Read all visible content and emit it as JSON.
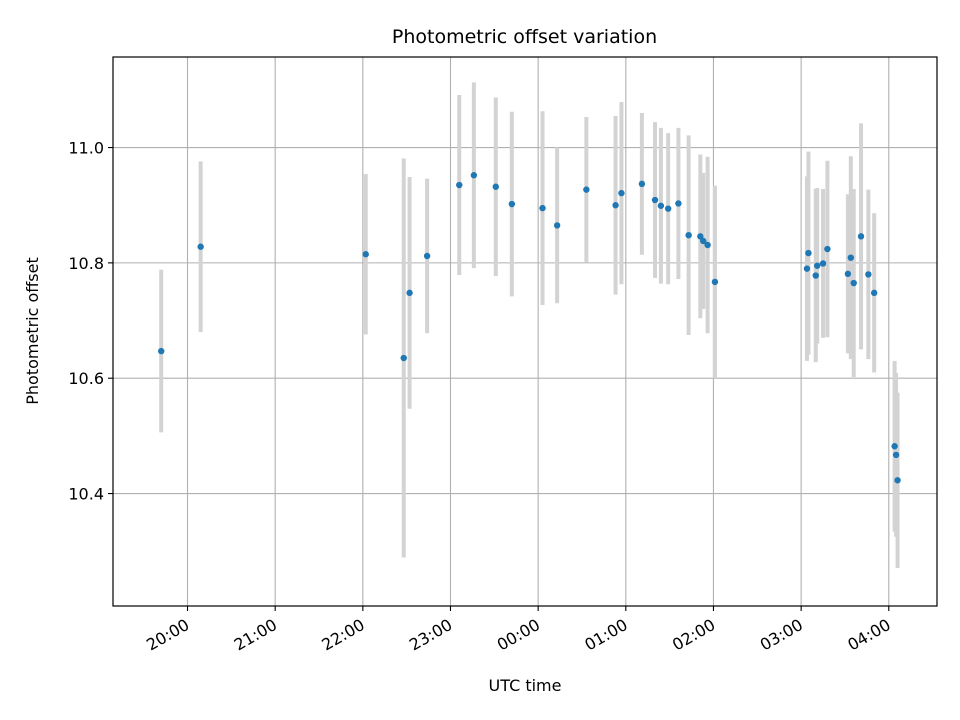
{
  "chart_data": {
    "type": "scatter",
    "title": "Photometric offset variation",
    "xlabel": "UTC time",
    "ylabel": "Photometric offset",
    "x_ticks": [
      "20:00",
      "21:00",
      "22:00",
      "23:00",
      "00:00",
      "01:00",
      "02:00",
      "03:00",
      "04:00"
    ],
    "y_ticks": [
      "10.4",
      "10.6",
      "10.8",
      "11.0"
    ],
    "xlim": [
      "19:09",
      "04:33"
    ],
    "ylim": [
      10.205,
      11.157
    ],
    "grid": true,
    "series": [
      {
        "marker_color": "#1f77b4",
        "error_color": "#d3d3d3",
        "points": [
          {
            "x": "19:42",
            "y": 10.647,
            "err": 0.141
          },
          {
            "x": "20:09",
            "y": 10.828,
            "err": 0.148
          },
          {
            "x": "22:02",
            "y": 10.815,
            "err": 0.139
          },
          {
            "x": "22:28",
            "y": 10.635,
            "err": 0.346
          },
          {
            "x": "22:32",
            "y": 10.748,
            "err": 0.201
          },
          {
            "x": "22:44",
            "y": 10.812,
            "err": 0.134
          },
          {
            "x": "23:06",
            "y": 10.935,
            "err": 0.156
          },
          {
            "x": "23:16",
            "y": 10.952,
            "err": 0.161
          },
          {
            "x": "23:31",
            "y": 10.932,
            "err": 0.155
          },
          {
            "x": "23:42",
            "y": 10.902,
            "err": 0.16
          },
          {
            "x": "00:03",
            "y": 10.895,
            "err": 0.168
          },
          {
            "x": "00:13",
            "y": 10.865,
            "err": 0.135
          },
          {
            "x": "00:33",
            "y": 10.927,
            "err": 0.126
          },
          {
            "x": "00:53",
            "y": 10.9,
            "err": 0.155
          },
          {
            "x": "00:57",
            "y": 10.921,
            "err": 0.158
          },
          {
            "x": "01:11",
            "y": 10.937,
            "err": 0.123
          },
          {
            "x": "01:20",
            "y": 10.909,
            "err": 0.135
          },
          {
            "x": "01:24",
            "y": 10.899,
            "err": 0.135
          },
          {
            "x": "01:29",
            "y": 10.894,
            "err": 0.131
          },
          {
            "x": "01:36",
            "y": 10.903,
            "err": 0.131
          },
          {
            "x": "01:43",
            "y": 10.848,
            "err": 0.173
          },
          {
            "x": "01:51",
            "y": 10.846,
            "err": 0.142
          },
          {
            "x": "01:53",
            "y": 10.838,
            "err": 0.118
          },
          {
            "x": "01:56",
            "y": 10.831,
            "err": 0.153
          },
          {
            "x": "02:01",
            "y": 10.767,
            "err": 0.167
          },
          {
            "x": "03:04",
            "y": 10.79,
            "err": 0.16
          },
          {
            "x": "03:05",
            "y": 10.817,
            "err": 0.176
          },
          {
            "x": "03:10",
            "y": 10.778,
            "err": 0.15
          },
          {
            "x": "03:11",
            "y": 10.795,
            "err": 0.135
          },
          {
            "x": "03:15",
            "y": 10.799,
            "err": 0.129
          },
          {
            "x": "03:18",
            "y": 10.824,
            "err": 0.153
          },
          {
            "x": "03:32",
            "y": 10.781,
            "err": 0.138
          },
          {
            "x": "03:34",
            "y": 10.809,
            "err": 0.176
          },
          {
            "x": "03:36",
            "y": 10.765,
            "err": 0.163
          },
          {
            "x": "03:41",
            "y": 10.846,
            "err": 0.196
          },
          {
            "x": "03:46",
            "y": 10.78,
            "err": 0.147
          },
          {
            "x": "03:50",
            "y": 10.748,
            "err": 0.138
          },
          {
            "x": "04:04",
            "y": 10.482,
            "err": 0.148
          },
          {
            "x": "04:05",
            "y": 10.467,
            "err": 0.142
          },
          {
            "x": "04:06",
            "y": 10.423,
            "err": 0.152
          }
        ]
      }
    ]
  }
}
